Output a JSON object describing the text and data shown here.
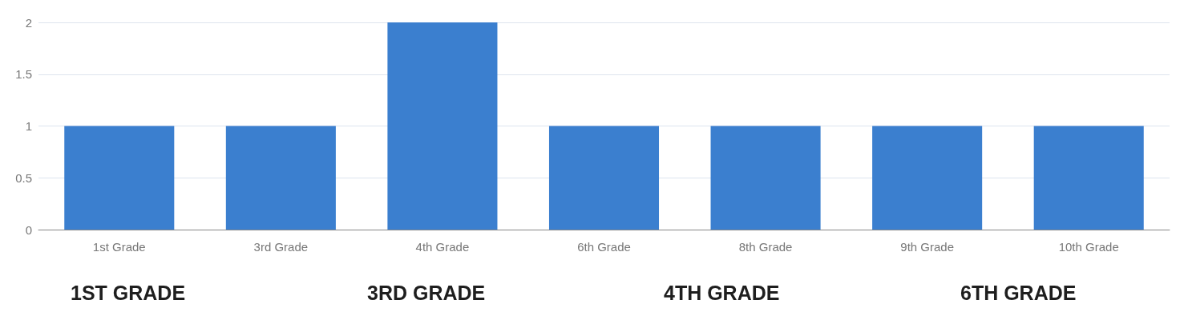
{
  "chart_data": {
    "type": "bar",
    "categories": [
      "1st Grade",
      "3rd Grade",
      "4th Grade",
      "6th Grade",
      "8th Grade",
      "9th Grade",
      "10th Grade"
    ],
    "values": [
      1,
      1,
      2,
      1,
      1,
      1,
      1
    ],
    "color": "#3b7fcf",
    "ylim": [
      0,
      2
    ],
    "yticks": [
      0,
      0.5,
      1,
      1.5,
      2
    ],
    "grid": "y",
    "annotations": [
      "1ST GRADE",
      "3RD GRADE",
      "4TH GRADE",
      "6TH GRADE"
    ]
  }
}
